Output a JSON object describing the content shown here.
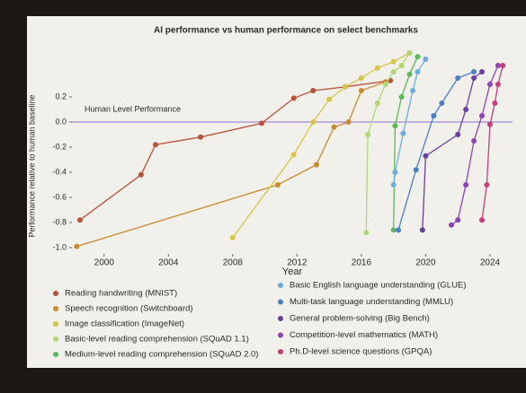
{
  "chart_data": {
    "type": "line",
    "title": "AI performance vs human performance on select benchmarks",
    "x_label": "Year",
    "y_label": "Performance relative to human baseline",
    "xlim": [
      1998,
      2025.4
    ],
    "ylim": [
      -1.05,
      0.65
    ],
    "xticks": [
      2000,
      2004,
      2008,
      2012,
      2016,
      2020,
      2024
    ],
    "yticks": [
      {
        "value": -1,
        "label": "-1.0"
      },
      -0.8,
      -0.6,
      -0.4,
      -0.2,
      {
        "value": 0,
        "label": "0.0"
      },
      0.2
    ],
    "reference_line": {
      "value": 0,
      "label": "Human Level Performance",
      "color": "#8a6fd0"
    },
    "series": [
      {
        "name": "Reading handwriting (MNIST)",
        "color": "#b8523a",
        "x": [
          1998.5,
          2002.3,
          2003.2,
          2006,
          2009.8,
          2011.8,
          2013,
          2015,
          2017.8
        ],
        "values": [
          -0.78,
          -0.42,
          -0.18,
          -0.12,
          -0.01,
          0.19,
          0.25,
          0.28,
          0.33
        ]
      },
      {
        "name": "Speech recognition (Switchboard)",
        "color": "#c98a2c",
        "x": [
          1998.3,
          2010.8,
          2013.2,
          2014.3,
          2015.2,
          2016,
          2017.5
        ],
        "values": [
          -0.99,
          -0.5,
          -0.34,
          -0.04,
          0.0,
          0.25,
          0.32
        ]
      },
      {
        "name": "Image classification (ImageNet)",
        "color": "#d6c44a",
        "x": [
          2008,
          2011.8,
          2013,
          2014,
          2015,
          2016,
          2017,
          2018,
          2019
        ],
        "values": [
          -0.92,
          -0.26,
          0.0,
          0.18,
          0.28,
          0.35,
          0.43,
          0.48,
          0.55
        ]
      },
      {
        "name": "Basic-level reading comprehension (SQuAD 1.1)",
        "color": "#b2d676",
        "x": [
          2016.3,
          2016.4,
          2017,
          2017.5,
          2018,
          2018.5,
          2019
        ],
        "values": [
          -0.88,
          -0.1,
          0.15,
          0.3,
          0.4,
          0.45,
          0.55
        ]
      },
      {
        "name": "Medium-level reading comprehension (SQuAD 2.0)",
        "color": "#5cb85c",
        "x": [
          2018,
          2018.1,
          2018.5,
          2019,
          2019.5
        ],
        "values": [
          -0.86,
          -0.03,
          0.2,
          0.38,
          0.52
        ]
      },
      {
        "name": "Basic English language understanding (GLUE)",
        "color": "#6aaee0",
        "x": [
          2018,
          2018.1,
          2018.6,
          2019.2,
          2019.5,
          2020
        ],
        "values": [
          -0.5,
          -0.4,
          -0.09,
          0.25,
          0.4,
          0.5
        ]
      },
      {
        "name": "Multi-task language understanding (MMLU)",
        "color": "#4a7fc9",
        "x": [
          2018.3,
          2019.4,
          2020.5,
          2021,
          2022,
          2023
        ],
        "values": [
          -0.86,
          -0.38,
          0.05,
          0.15,
          0.35,
          0.4
        ]
      },
      {
        "name": "General problem-solving (Big Bench)",
        "color": "#6a3fa0",
        "x": [
          2019.8,
          2020,
          2022,
          2022.5,
          2023,
          2023.5
        ],
        "values": [
          -0.86,
          -0.27,
          -0.1,
          0.1,
          0.35,
          0.4
        ]
      },
      {
        "name": "Competition-level mathematics (MATH)",
        "color": "#8e44b8",
        "x": [
          2021.6,
          2022,
          2022.5,
          2023,
          2023.5,
          2024,
          2024.5
        ],
        "values": [
          -0.82,
          -0.78,
          -0.5,
          -0.15,
          0.05,
          0.3,
          0.45
        ]
      },
      {
        "name": "Ph.D-level science questions (GPQA)",
        "color": "#c93d7c",
        "x": [
          2023.5,
          2023.8,
          2024,
          2024.3,
          2024.5,
          2024.8
        ],
        "values": [
          -0.78,
          -0.5,
          -0.02,
          0.15,
          0.3,
          0.45
        ]
      }
    ]
  }
}
